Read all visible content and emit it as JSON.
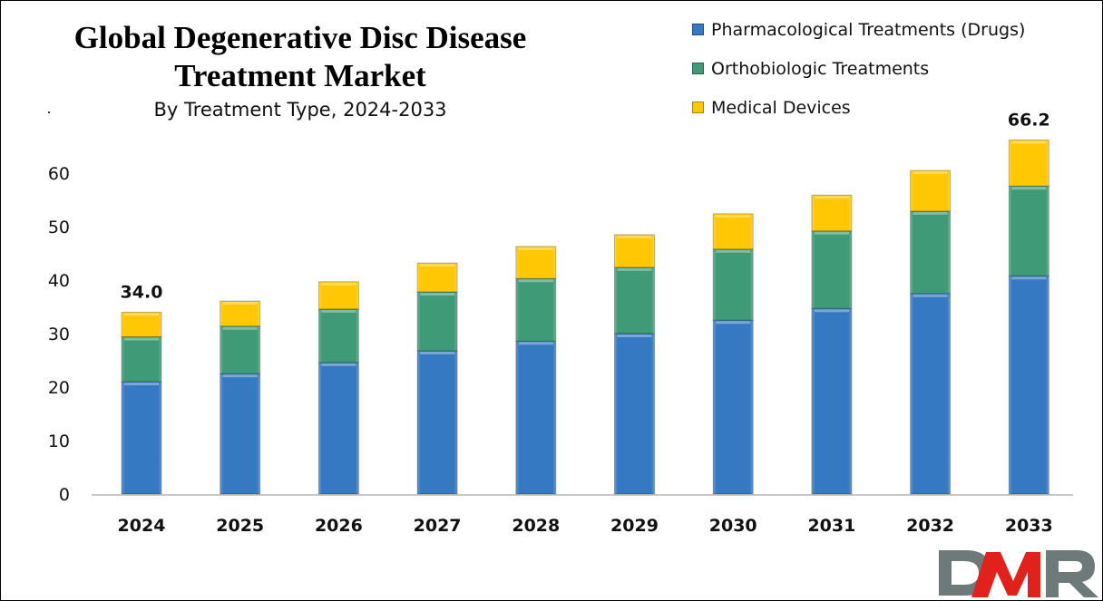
{
  "chart_data": {
    "type": "bar",
    "stacked": true,
    "title": "Global Degenerative Disc Disease Treatment Market",
    "subtitle": "By Treatment Type, 2024-2033",
    "xlabel": "",
    "ylabel": "",
    "ylim": [
      0,
      70
    ],
    "yticks": [
      0,
      10,
      20,
      30,
      40,
      50,
      60
    ],
    "grid": false,
    "legend_position": "top-right",
    "categories": [
      "2024",
      "2025",
      "2026",
      "2027",
      "2028",
      "2029",
      "2030",
      "2031",
      "2032",
      "2033"
    ],
    "series": [
      {
        "name": "Pharmacological Treatments (Drugs)",
        "color": "#3579C2",
        "values": [
          21.0,
          22.5,
          24.6,
          26.8,
          28.6,
          30.0,
          32.5,
          34.7,
          37.5,
          40.8
        ]
      },
      {
        "name": "Orthobiologic Treatments",
        "color": "#3E9A77",
        "values": [
          8.4,
          8.9,
          10.0,
          11.0,
          11.7,
          12.4,
          13.3,
          14.5,
          15.4,
          16.8
        ]
      },
      {
        "name": "Medical Devices",
        "color": "#FFC704",
        "values": [
          4.6,
          4.7,
          5.1,
          5.4,
          6.0,
          6.1,
          6.6,
          6.7,
          7.6,
          8.6
        ]
      }
    ],
    "totals": [
      34.0,
      36.1,
      39.7,
      43.2,
      46.3,
      48.5,
      52.4,
      55.9,
      60.5,
      66.2
    ],
    "annotations": [
      {
        "category": "2024",
        "text": "34.0"
      },
      {
        "category": "2033",
        "text": "66.2"
      }
    ]
  },
  "branding": {
    "logo_text": "DMR",
    "logo_colors": [
      "#6E7A7A",
      "#E0211C",
      "#6E7A7A"
    ]
  }
}
